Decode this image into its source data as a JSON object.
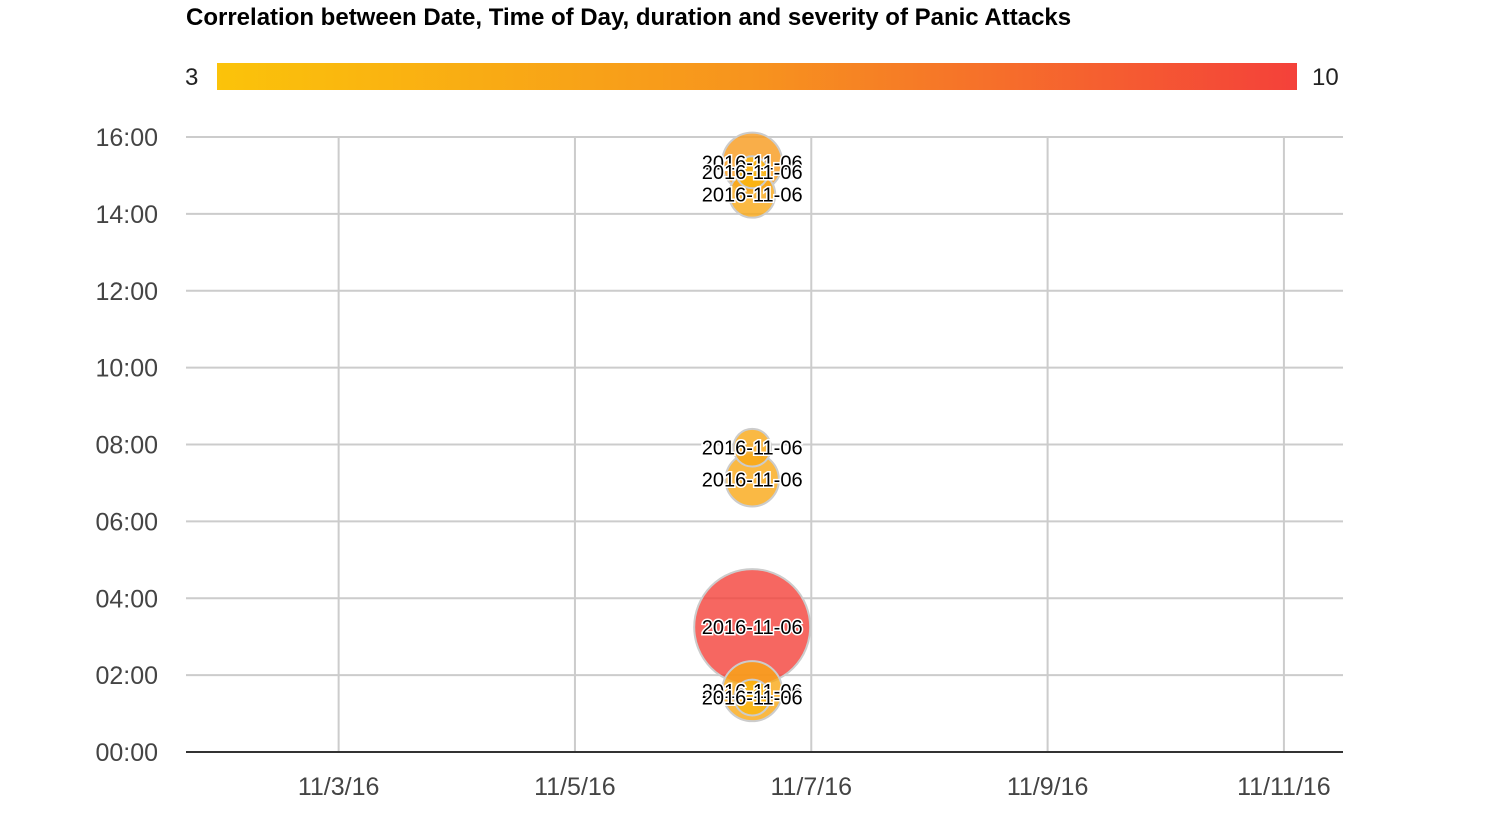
{
  "chart_data": {
    "type": "bubble",
    "title": "Correlation between Date, Time of Day, duration and severity of Panic Attacks",
    "xlabel": "",
    "ylabel": "",
    "color_axis": {
      "min": 3,
      "max": 10,
      "min_label": "3",
      "max_label": "10",
      "colors": [
        "#fbc30a",
        "#f7931e",
        "#f4413a"
      ]
    },
    "x_axis": {
      "ticks": [
        "11/3/16",
        "11/5/16",
        "11/7/16",
        "11/9/16",
        "11/11/16"
      ],
      "tick_values": [
        "2016-11-03",
        "2016-11-05",
        "2016-11-07",
        "2016-11-09",
        "2016-11-11"
      ],
      "range": [
        "2016-11-01 17:00",
        "2016-11-11 12:00"
      ]
    },
    "y_axis": {
      "ticks": [
        "00:00",
        "02:00",
        "04:00",
        "06:00",
        "08:00",
        "10:00",
        "12:00",
        "14:00",
        "16:00"
      ],
      "tick_values": [
        0,
        2,
        4,
        6,
        8,
        10,
        12,
        14,
        16
      ],
      "range": [
        0,
        16
      ]
    },
    "grid": true,
    "legend": "top",
    "points": [
      {
        "label": "2016-11-06",
        "x": "2016-11-06",
        "time": "15:20",
        "severity": 6,
        "duration": 30
      },
      {
        "label": "2016-11-06",
        "x": "2016-11-06",
        "time": "15:05",
        "severity": 4,
        "duration": 12
      },
      {
        "label": "2016-11-06",
        "x": "2016-11-06",
        "time": "14:30",
        "severity": 5,
        "duration": 20
      },
      {
        "label": "2016-11-06",
        "x": "2016-11-06",
        "time": "07:55",
        "severity": 5,
        "duration": 15
      },
      {
        "label": "2016-11-06",
        "x": "2016-11-06",
        "time": "07:05",
        "severity": 5,
        "duration": 25
      },
      {
        "label": "2016-11-06",
        "x": "2016-11-06",
        "time": "03:15",
        "severity": 10,
        "duration": 90
      },
      {
        "label": "2016-11-06",
        "x": "2016-11-06",
        "time": "01:35",
        "severity": 5,
        "duration": 30
      },
      {
        "label": "2016-11-06",
        "x": "2016-11-06",
        "time": "01:25",
        "severity": 4,
        "duration": 14
      }
    ]
  }
}
